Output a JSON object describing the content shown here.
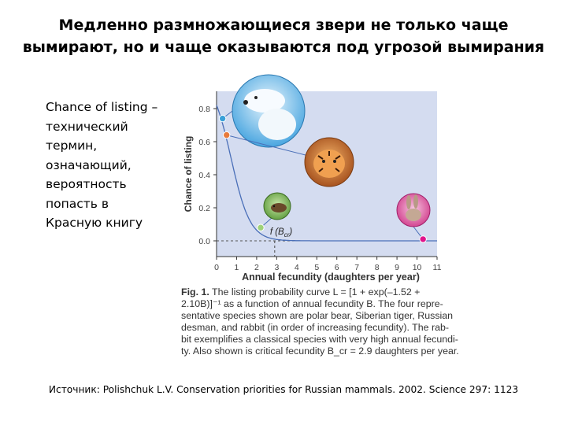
{
  "title_lines": [
    "Медленно размножающиеся звери не только чаще",
    "вымирают, но и чаще оказываются под угрозой вымирания"
  ],
  "side_text_lines": [
    "Chance of listing –",
    "технический",
    "термин,",
    "означающий,",
    "вероятность",
    "попасть в",
    "Красную книгу"
  ],
  "chart_data": {
    "type": "scatter",
    "ylabel": "Chance of listing",
    "xlabel": "Annual fecundity (daughters per year)",
    "x_ticks": [
      "0",
      "1",
      "2",
      "3",
      "4",
      "5",
      "6",
      "7",
      "8",
      "9",
      "10",
      "11"
    ],
    "y_ticks": [
      "0.0",
      "0.2",
      "0.4",
      "0.6",
      "0.8"
    ],
    "xlim": [
      0,
      11
    ],
    "ylim": [
      0.0,
      0.8
    ],
    "annotation": "f (B",
    "annotation_sub": "cr",
    "annotation_close": ")",
    "critical_fecundity": 2.9,
    "points": [
      {
        "species": "polar-bear",
        "x": 0.3,
        "y": 0.74,
        "color": "#3aa0d8"
      },
      {
        "species": "siberian-tiger",
        "x": 0.5,
        "y": 0.64,
        "color": "#e87a3a"
      },
      {
        "species": "russian-desman",
        "x": 2.2,
        "y": 0.08,
        "color": "#9fd27a"
      },
      {
        "species": "rabbit",
        "x": 10.3,
        "y": 0.01,
        "color": "#e0148c"
      }
    ],
    "curve_color": "#4a6fb8",
    "plot_bg": "#d4dcf0"
  },
  "caption_lines": [
    {
      "bold": "Fig. 1.",
      "text": " The listing probability curve L = [1 + exp(–1.52 +"
    },
    {
      "bold": "",
      "text": "2.10B)]⁻¹ as a function of annual fecundity B. The four repre-"
    },
    {
      "bold": "",
      "text": "sentative species shown are polar bear, Siberian tiger, Russian"
    },
    {
      "bold": "",
      "text": "desman, and rabbit (in order of increasing fecundity). The rab-"
    },
    {
      "bold": "",
      "text": "bit exemplifies a classical species with very high annual fecundi-"
    },
    {
      "bold": "",
      "text": "ty. Also shown is critical fecundity B_cr = 2.9 daughters per year."
    }
  ],
  "source": "Источник: Polishchuk L.V. Conservation priorities for Russian mammals. 2002. Science 297: 1123"
}
